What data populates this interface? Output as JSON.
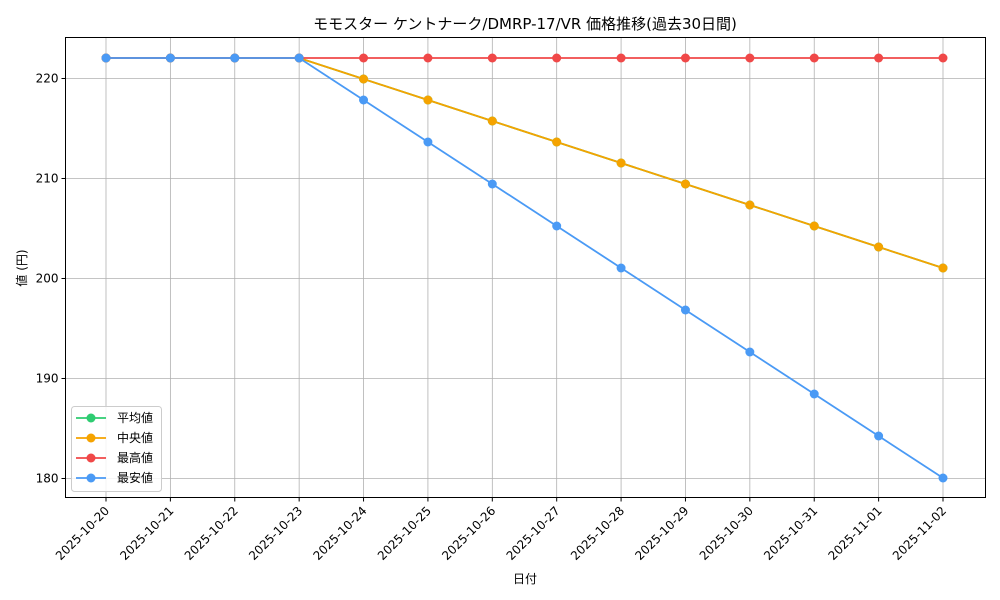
{
  "chart_data": {
    "type": "line",
    "title": "モモスター ケントナーク/DMRP-17/VR 価格推移(過去30日間)",
    "xlabel": "日付",
    "ylabel": "値 (円)",
    "x": [
      "2025-10-20",
      "2025-10-21",
      "2025-10-22",
      "2025-10-23",
      "2025-10-24",
      "2025-10-25",
      "2025-10-26",
      "2025-10-27",
      "2025-10-28",
      "2025-10-29",
      "2025-10-30",
      "2025-10-31",
      "2025-11-01",
      "2025-11-02"
    ],
    "ylim": [
      178,
      224
    ],
    "yticks": [
      180,
      190,
      200,
      210,
      220
    ],
    "grid": true,
    "legend_position": "lower left",
    "series": [
      {
        "name": "平均値",
        "color": "#2ecc71",
        "values": [
          222,
          222,
          222,
          222,
          219.9,
          217.8,
          215.7,
          213.6,
          211.5,
          209.4,
          207.3,
          205.2,
          203.1,
          201.0
        ]
      },
      {
        "name": "中央値",
        "color": "#f5a300",
        "values": [
          222,
          222,
          222,
          222,
          219.9,
          217.8,
          215.7,
          213.6,
          211.5,
          209.4,
          207.3,
          205.2,
          203.1,
          201.0
        ]
      },
      {
        "name": "最高値",
        "color": "#f04848",
        "values": [
          222,
          222,
          222,
          222,
          222,
          222,
          222,
          222,
          222,
          222,
          222,
          222,
          222,
          222
        ]
      },
      {
        "name": "最安値",
        "color": "#4a9af5",
        "values": [
          222,
          222,
          222,
          222,
          217.8,
          213.6,
          209.4,
          205.2,
          201.0,
          196.8,
          192.6,
          188.4,
          184.2,
          180.0
        ]
      }
    ]
  }
}
